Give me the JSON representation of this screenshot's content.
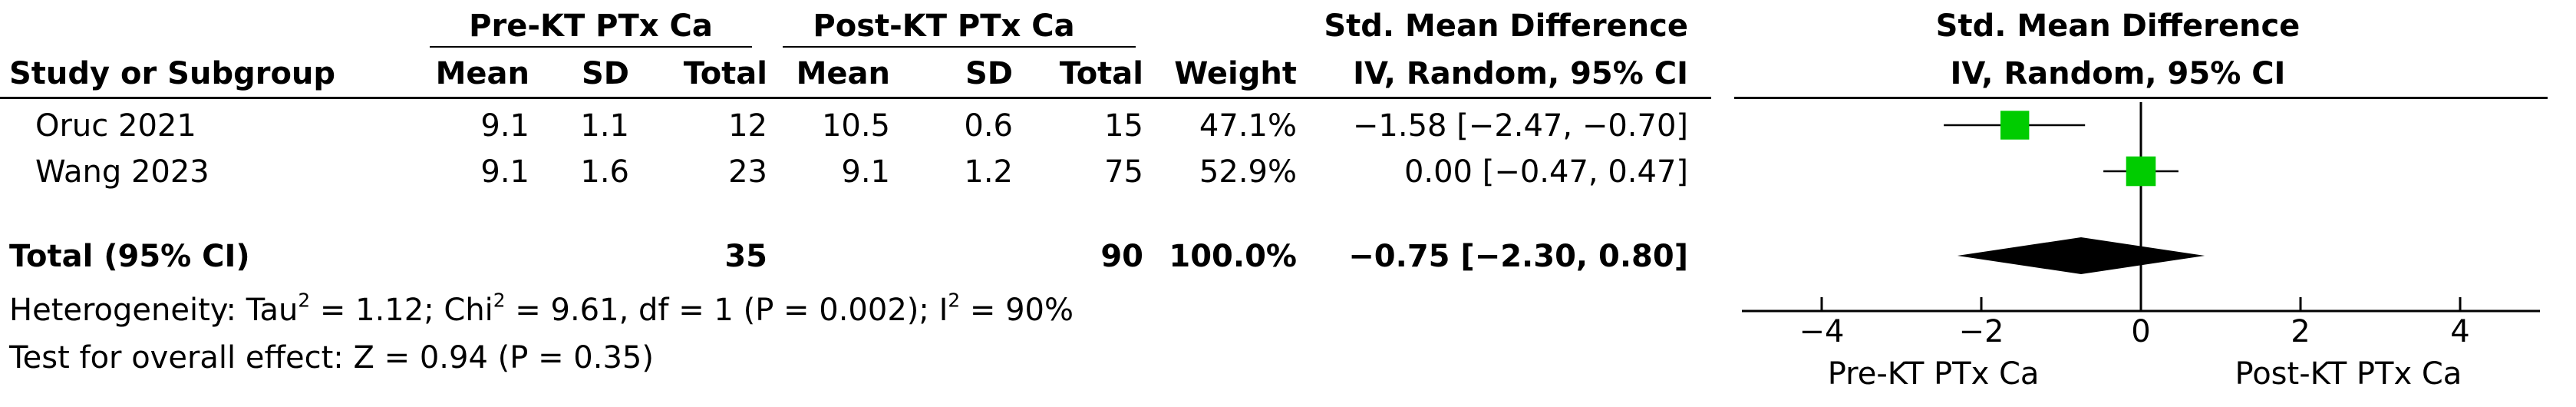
{
  "group_headers": {
    "pre": "Pre-KT PTx Ca",
    "post": "Post-KT PTx Ca",
    "effect": "Std. Mean Difference",
    "plot": "Std. Mean Difference"
  },
  "columns": {
    "study": "Study or Subgroup",
    "pre_mean": "Mean",
    "pre_sd": "SD",
    "pre_total": "Total",
    "post_mean": "Mean",
    "post_sd": "SD",
    "post_total": "Total",
    "weight": "Weight",
    "effect": "IV, Random, 95% CI",
    "plot": "IV, Random, 95% CI"
  },
  "studies": [
    {
      "name": "Oruc 2021",
      "pre_mean": "9.1",
      "pre_sd": "1.1",
      "pre_total": "12",
      "post_mean": "10.5",
      "post_sd": "0.6",
      "post_total": "15",
      "weight": "47.1%",
      "ci_text": "−1.58 [−2.47, −0.70]"
    },
    {
      "name": "Wang 2023",
      "pre_mean": "9.1",
      "pre_sd": "1.6",
      "pre_total": "23",
      "post_mean": "9.1",
      "post_sd": "1.2",
      "post_total": "75",
      "weight": "52.9%",
      "ci_text": "0.00 [−0.47, 0.47]"
    }
  ],
  "total": {
    "label": "Total (95% CI)",
    "pre_total": "35",
    "post_total": "90",
    "weight": "100.0%",
    "ci_text": "−0.75 [−2.30, 0.80]"
  },
  "heterogeneity": {
    "prefix": "Heterogeneity: Tau",
    "sup1": "2",
    "part2": " = 1.12; Chi",
    "sup2": "2",
    "part3": " = 9.61, df = 1 (P = 0.002); I",
    "sup3": "2",
    "part4": " = 90%"
  },
  "overall_effect": "Test for overall effect: Z = 0.94 (P = 0.35)",
  "axis_labels": {
    "left": "Pre-KT PTx Ca",
    "right": "Post-KT PTx Ca"
  },
  "colors": {
    "marker": "#00cc00",
    "diamond": "#000000"
  },
  "chart_data": {
    "type": "forest",
    "title": "Std. Mean Difference",
    "subtitle": "IV, Random, 95% CI",
    "xlim": [
      -5,
      5
    ],
    "ticks": [
      -4,
      -2,
      0,
      2,
      4
    ],
    "tick_labels": [
      "−4",
      "−2",
      "0",
      "2",
      "4"
    ],
    "series": [
      {
        "name": "Oruc 2021",
        "estimate": -1.58,
        "lower": -2.47,
        "upper": -0.7,
        "weight": 47.1
      },
      {
        "name": "Wang 2023",
        "estimate": 0.0,
        "lower": -0.47,
        "upper": 0.47,
        "weight": 52.9
      }
    ],
    "pooled": {
      "estimate": -0.75,
      "lower": -2.3,
      "upper": 0.8
    },
    "xlabel_left": "Pre-KT PTx Ca",
    "xlabel_right": "Post-KT PTx Ca"
  }
}
